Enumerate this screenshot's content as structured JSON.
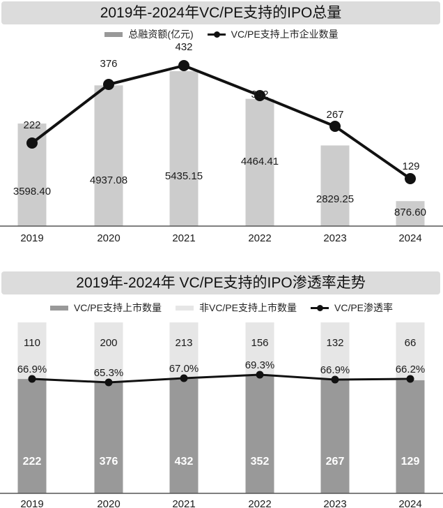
{
  "chart1": {
    "title": "2019年-2024年VC/PE支持的IPO总量",
    "legend": [
      {
        "label": "总融资额(亿元)",
        "type": "bar",
        "color": "#cccccc"
      },
      {
        "label": "VC/PE支持上市企业数量",
        "type": "line",
        "color": "#111111"
      }
    ]
  },
  "chart2": {
    "title": "2019年-2024年 VC/PE支持的IPO渗透率走势",
    "legend": [
      {
        "label": "VC/PE支持上市数量",
        "type": "bar",
        "color": "#999999"
      },
      {
        "label": "非VC/PE支持上市数量",
        "type": "bar",
        "color": "#e6e6e6"
      },
      {
        "label": "VC/PE渗透率",
        "type": "line",
        "color": "#111111"
      }
    ]
  },
  "chart_data": [
    {
      "type": "bar+line",
      "title": "2019年-2024年VC/PE支持的IPO总量",
      "categories": [
        "2019",
        "2020",
        "2021",
        "2022",
        "2023",
        "2024"
      ],
      "series": [
        {
          "name": "总融资额(亿元)",
          "type": "bar",
          "values": [
            3598.4,
            4937.08,
            5435.15,
            4464.41,
            2829.25,
            876.6
          ],
          "labels": [
            "3598.40",
            "4937.08",
            "5435.15",
            "4464.41",
            "2829.25",
            "876.60"
          ]
        },
        {
          "name": "VC/PE支持上市企业数量",
          "type": "line",
          "values": [
            222,
            376,
            432,
            352,
            267,
            129
          ],
          "labels": [
            "222",
            "376",
            "432",
            "352",
            "267",
            "129"
          ]
        }
      ],
      "xlabel": "",
      "ylabel": "",
      "grid": false,
      "legend_position": "top"
    },
    {
      "type": "stacked-bar+line",
      "title": "2019年-2024年 VC/PE支持的IPO渗透率走势",
      "categories": [
        "2019",
        "2020",
        "2021",
        "2022",
        "2023",
        "2024"
      ],
      "series": [
        {
          "name": "VC/PE支持上市数量",
          "type": "bar",
          "values": [
            222,
            376,
            432,
            352,
            267,
            129
          ],
          "labels": [
            "222",
            "376",
            "432",
            "352",
            "267",
            "129"
          ]
        },
        {
          "name": "非VC/PE支持上市数量",
          "type": "bar",
          "values": [
            110,
            200,
            213,
            156,
            132,
            66
          ],
          "labels": [
            "110",
            "200",
            "213",
            "156",
            "132",
            "66"
          ]
        },
        {
          "name": "VC/PE渗透率",
          "type": "line",
          "values": [
            66.9,
            65.3,
            67.0,
            69.3,
            66.9,
            66.2
          ],
          "labels": [
            "66.9%",
            "65.3%",
            "67.0%",
            "69.3%",
            "66.9%",
            "66.2%"
          ]
        }
      ],
      "xlabel": "",
      "ylabel": "",
      "grid": false,
      "legend_position": "top"
    }
  ]
}
